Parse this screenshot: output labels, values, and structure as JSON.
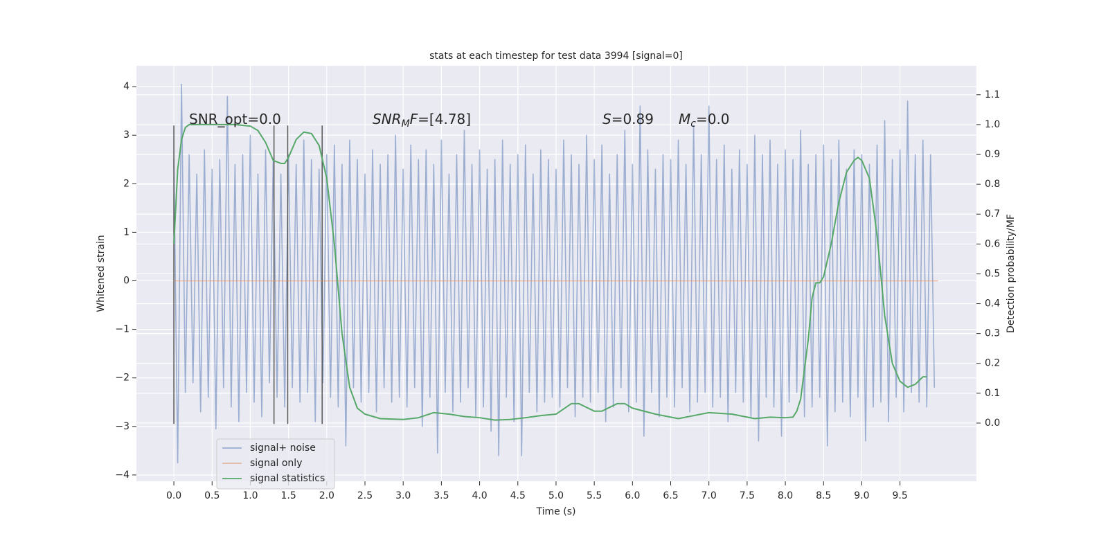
{
  "chart_data": {
    "type": "line",
    "title": "stats at each timestep for test data 3994 [signal=0]",
    "xlabel": "Time (s)",
    "ylabel": "Whitened strain",
    "y2label": "Detection probability/MF",
    "xlim": [
      -0.49,
      10.5
    ],
    "ylim": [
      -4.13,
      4.43
    ],
    "y2lim": [
      -0.195,
      1.197
    ],
    "xticks": [
      {
        "value": 0,
        "label": "0.0"
      },
      {
        "value": 0.5,
        "label": "0.5"
      },
      {
        "value": 1,
        "label": "1.0"
      },
      {
        "value": 1.5,
        "label": "1.5"
      },
      {
        "value": 2,
        "label": "2.0"
      },
      {
        "value": 2.5,
        "label": "2.5"
      },
      {
        "value": 3,
        "label": "3.0"
      },
      {
        "value": 3.5,
        "label": "3.5"
      },
      {
        "value": 4,
        "label": "4.0"
      },
      {
        "value": 4.5,
        "label": "4.5"
      },
      {
        "value": 5,
        "label": "5.0"
      },
      {
        "value": 5.5,
        "label": "5.5"
      },
      {
        "value": 6,
        "label": "6.0"
      },
      {
        "value": 6.5,
        "label": "6.5"
      },
      {
        "value": 7,
        "label": "7.0"
      },
      {
        "value": 7.5,
        "label": "7.5"
      },
      {
        "value": 8,
        "label": "8.0"
      },
      {
        "value": 8.5,
        "label": "8.5"
      },
      {
        "value": 9,
        "label": "9.0"
      },
      {
        "value": 9.5,
        "label": "9.5"
      }
    ],
    "yticks": [
      {
        "value": -4,
        "label": "−4"
      },
      {
        "value": -3,
        "label": "−3"
      },
      {
        "value": -2,
        "label": "−2"
      },
      {
        "value": -1,
        "label": "−1"
      },
      0,
      1,
      2,
      3,
      4
    ],
    "y2ticks": [
      {
        "value": 0,
        "label": "0.0"
      },
      {
        "value": 0.1,
        "label": "0.1"
      },
      {
        "value": 0.2,
        "label": "0.2"
      },
      {
        "value": 0.3,
        "label": "0.3"
      },
      {
        "value": 0.4,
        "label": "0.4"
      },
      {
        "value": 0.5,
        "label": "0.5"
      },
      {
        "value": 0.6,
        "label": "0.6"
      },
      {
        "value": 0.7,
        "label": "0.7"
      },
      {
        "value": 0.8,
        "label": "0.8"
      },
      {
        "value": 0.9,
        "label": "0.9"
      },
      {
        "value": 1,
        "label": "1.0"
      },
      {
        "value": 1.1,
        "label": "1.1"
      }
    ],
    "grid": true,
    "legend": "lower left",
    "series": [
      {
        "name": "signal+ noise",
        "color": "#4c72b0",
        "x": [
          0,
          0.05,
          0.1,
          0.15,
          0.2,
          0.25,
          0.3,
          0.35,
          0.4,
          0.45,
          0.5,
          0.55,
          0.6,
          0.65,
          0.7,
          0.75,
          0.8,
          0.85,
          0.9,
          0.95,
          1,
          1.05,
          1.1,
          1.15,
          1.2,
          1.25,
          1.3,
          1.35,
          1.4,
          1.45,
          1.5,
          1.55,
          1.6,
          1.65,
          1.7,
          1.75,
          1.8,
          1.85,
          1.9,
          1.95,
          2,
          2.05,
          2.1,
          2.15,
          2.2,
          2.25,
          2.3,
          2.35,
          2.4,
          2.45,
          2.5,
          2.55,
          2.6,
          2.65,
          2.7,
          2.75,
          2.8,
          2.85,
          2.9,
          2.95,
          3,
          3.05,
          3.1,
          3.15,
          3.2,
          3.25,
          3.3,
          3.35,
          3.4,
          3.45,
          3.5,
          3.55,
          3.6,
          3.65,
          3.7,
          3.75,
          3.8,
          3.85,
          3.9,
          3.95,
          4,
          4.05,
          4.1,
          4.15,
          4.2,
          4.25,
          4.3,
          4.35,
          4.4,
          4.45,
          4.5,
          4.55,
          4.6,
          4.65,
          4.7,
          4.75,
          4.8,
          4.85,
          4.9,
          4.95,
          5,
          5.05,
          5.1,
          5.15,
          5.2,
          5.25,
          5.3,
          5.35,
          5.4,
          5.45,
          5.5,
          5.55,
          5.6,
          5.65,
          5.7,
          5.75,
          5.8,
          5.85,
          5.9,
          5.95,
          6,
          6.05,
          6.1,
          6.15,
          6.2,
          6.25,
          6.3,
          6.35,
          6.4,
          6.45,
          6.5,
          6.55,
          6.6,
          6.65,
          6.7,
          6.75,
          6.8,
          6.85,
          6.9,
          6.95,
          7,
          7.05,
          7.1,
          7.15,
          7.2,
          7.25,
          7.3,
          7.35,
          7.4,
          7.45,
          7.5,
          7.55,
          7.6,
          7.65,
          7.7,
          7.75,
          7.8,
          7.85,
          7.9,
          7.95,
          8,
          8.05,
          8.1,
          8.15,
          8.2,
          8.25,
          8.3,
          8.35,
          8.4,
          8.45,
          8.5,
          8.55,
          8.6,
          8.65,
          8.7,
          8.75,
          8.8,
          8.85,
          8.9,
          8.95,
          9,
          9.05,
          9.1,
          9.15,
          9.2,
          9.25,
          9.3,
          9.35,
          9.4,
          9.45,
          9.5,
          9.55,
          9.6,
          9.65,
          9.7,
          9.75,
          9.8,
          9.85,
          9.9,
          9.95
        ],
        "values": [
          2.5,
          -3.75,
          4.05,
          -2.3,
          2.6,
          -2.1,
          2.2,
          -2.7,
          2.7,
          -2.4,
          2.3,
          -3.05,
          2.5,
          -2.2,
          3.8,
          -2.6,
          2.4,
          -2.9,
          2.6,
          -2.3,
          3.0,
          -2.5,
          2.2,
          -2.8,
          2.7,
          -2.1,
          2.5,
          -2.4,
          2.2,
          -2.6,
          2.6,
          -2.2,
          2.4,
          -2.5,
          2.9,
          -2.3,
          2.5,
          -2.9,
          2.3,
          -2.1,
          2.6,
          -2.4,
          2.8,
          -2.6,
          2.4,
          -3.4,
          2.9,
          -2.2,
          2.5,
          -2.5,
          2.2,
          -2.3,
          2.7,
          -2.7,
          2.4,
          -2.2,
          2.6,
          -2.5,
          3.0,
          -2.4,
          2.3,
          -2.6,
          2.8,
          -2.2,
          2.5,
          -3.0,
          2.7,
          -2.4,
          2.4,
          -3.55,
          2.9,
          -2.3,
          2.2,
          -2.7,
          2.6,
          -2.5,
          3.1,
          -2.2,
          2.4,
          -2.8,
          2.7,
          -2.6,
          2.3,
          -3.1,
          2.5,
          -3.6,
          2.9,
          -2.4,
          2.4,
          -2.9,
          2.6,
          -3.6,
          2.8,
          -2.3,
          2.2,
          -2.7,
          2.7,
          -2.5,
          2.5,
          -2.4,
          2.3,
          -2.6,
          2.9,
          -2.2,
          2.6,
          -2.8,
          2.4,
          -2.4,
          3.0,
          -2.5,
          2.5,
          -2.3,
          2.8,
          -2.9,
          2.2,
          -2.6,
          2.6,
          -2.2,
          3.1,
          -2.7,
          2.4,
          -2.5,
          3.6,
          -3.2,
          2.7,
          -2.3,
          2.3,
          -2.8,
          2.6,
          -2.4,
          2.5,
          -2.6,
          2.9,
          -2.2,
          2.4,
          -2.7,
          3.2,
          -2.5,
          2.6,
          -2.3,
          3.6,
          -2.6,
          2.5,
          -2.4,
          2.8,
          -2.9,
          2.3,
          -2.3,
          2.7,
          -2.5,
          2.4,
          -2.8,
          3.0,
          -3.3,
          2.6,
          -2.4,
          2.9,
          -2.6,
          2.4,
          -3.2,
          2.7,
          -2.5,
          2.5,
          -2.3,
          3.1,
          -2.8,
          2.4,
          -2.6,
          2.6,
          -2.4,
          2.8,
          -3.4,
          2.5,
          -2.7,
          2.9,
          -2.5,
          2.3,
          -2.8,
          2.7,
          -2.4,
          2.6,
          -3.3,
          2.4,
          -2.6,
          2.8,
          -2.5,
          3.3,
          -2.9,
          2.5,
          -2.4,
          2.7,
          -2.7,
          3.7,
          -2.3,
          2.6,
          -2.5,
          2.9,
          -2.6,
          2.6,
          -2.2
        ]
      },
      {
        "name": "signal only",
        "color": "#dd8452",
        "x": [
          0,
          10
        ],
        "values": [
          0,
          0
        ]
      },
      {
        "name": "signal statistics",
        "color": "#55a868",
        "axis": "y2",
        "x": [
          0,
          0.05,
          0.1,
          0.15,
          0.2,
          0.4,
          0.6,
          0.8,
          1,
          1.1,
          1.2,
          1.3,
          1.4,
          1.45,
          1.5,
          1.6,
          1.7,
          1.8,
          1.9,
          2,
          2.1,
          2.2,
          2.3,
          2.4,
          2.5,
          2.7,
          3,
          3.2,
          3.4,
          3.6,
          3.8,
          4,
          4.2,
          4.4,
          4.6,
          4.8,
          5,
          5.2,
          5.3,
          5.5,
          5.6,
          5.8,
          5.9,
          6,
          6.3,
          6.6,
          6.8,
          7,
          7.3,
          7.6,
          7.8,
          8,
          8.1,
          8.15,
          8.2,
          8.3,
          8.35,
          8.4,
          8.45,
          8.5,
          8.6,
          8.7,
          8.8,
          8.9,
          8.95,
          9,
          9.1,
          9.2,
          9.3,
          9.4,
          9.5,
          9.6,
          9.7,
          9.8,
          9.85
        ],
        "values": [
          0.6,
          0.85,
          0.95,
          0.99,
          1.0,
          1.0,
          1.0,
          1.0,
          0.995,
          0.98,
          0.94,
          0.88,
          0.87,
          0.87,
          0.89,
          0.95,
          0.975,
          0.97,
          0.93,
          0.82,
          0.6,
          0.3,
          0.12,
          0.05,
          0.03,
          0.015,
          0.012,
          0.018,
          0.035,
          0.03,
          0.022,
          0.018,
          0.01,
          0.012,
          0.018,
          0.025,
          0.03,
          0.065,
          0.065,
          0.04,
          0.04,
          0.065,
          0.065,
          0.05,
          0.03,
          0.015,
          0.025,
          0.035,
          0.03,
          0.015,
          0.02,
          0.018,
          0.02,
          0.04,
          0.08,
          0.28,
          0.42,
          0.47,
          0.47,
          0.49,
          0.6,
          0.74,
          0.84,
          0.88,
          0.89,
          0.88,
          0.82,
          0.63,
          0.36,
          0.2,
          0.14,
          0.12,
          0.13,
          0.155,
          0.155
        ]
      }
    ],
    "vlines": {
      "x": [
        0,
        1.31,
        1.49,
        1.94
      ],
      "ymin": -2.95,
      "ymax": 3.2,
      "color": "#555555"
    },
    "annotations": [
      {
        "parts": [
          {
            "text": "SNR_opt=0.0",
            "style": "normal"
          }
        ]
      },
      {
        "parts": [
          {
            "text": "SNR",
            "style": "italic"
          },
          {
            "text": "M",
            "style": "sub"
          },
          {
            "text": "F",
            "style": "italic"
          },
          {
            "text": "=[4.78]",
            "style": "normal"
          }
        ]
      },
      {
        "parts": [
          {
            "text": "S",
            "style": "italic"
          },
          {
            "text": "=0.89",
            "style": "normal"
          }
        ]
      },
      {
        "parts": [
          {
            "text": "M",
            "style": "italic"
          },
          {
            "text": "c",
            "style": "sub"
          },
          {
            "text": "=0.0",
            "style": "normal"
          }
        ]
      }
    ]
  }
}
